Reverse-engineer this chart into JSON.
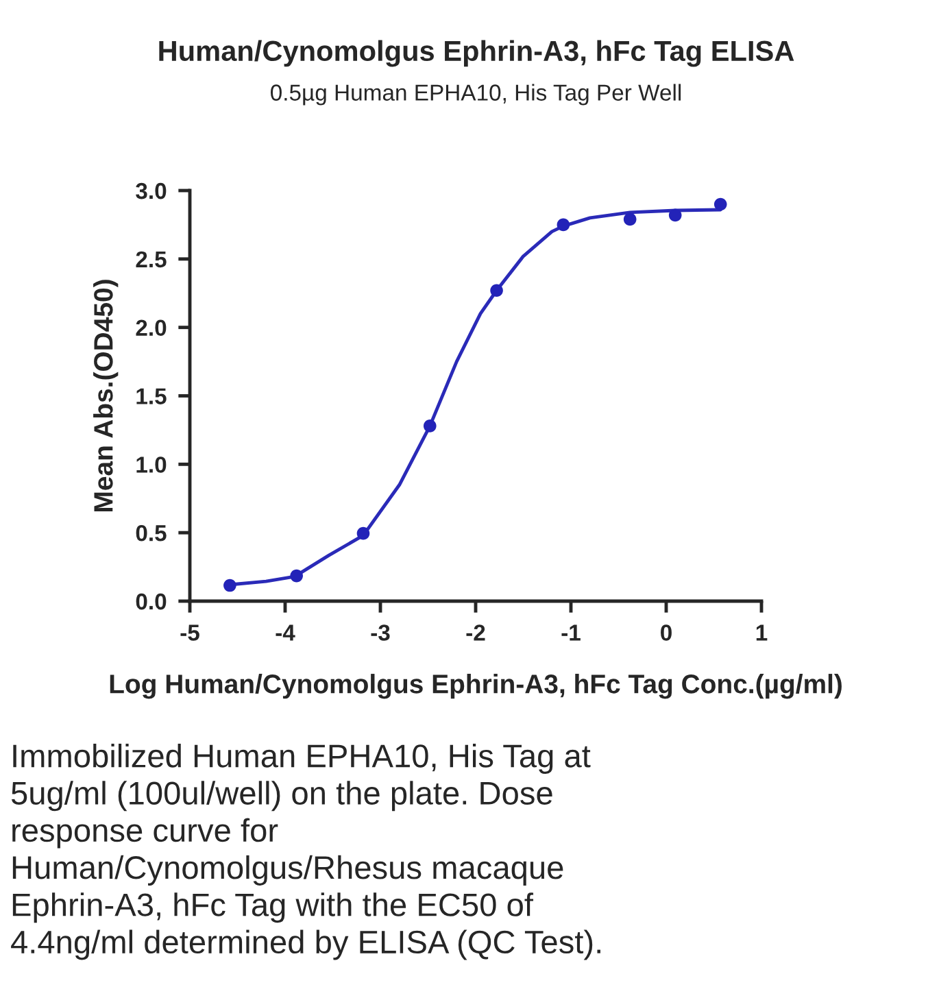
{
  "chart_data": {
    "type": "scatter",
    "title": "Human/Cynomolgus Ephrin-A3, hFc Tag ELISA",
    "subtitle": "0.5µg Human EPHA10, His Tag Per Well",
    "xlabel": "Log Human/Cynomolgus Ephrin-A3, hFc Tag Conc.(µg/ml)",
    "ylabel": "Mean Abs.(OD450)",
    "xlim": [
      -5,
      1
    ],
    "xticks": [
      -5,
      -4,
      -3,
      -2,
      -1,
      0,
      1
    ],
    "ylim": [
      0,
      3
    ],
    "yticks": [
      {
        "value": 0,
        "label": "0.0"
      },
      {
        "value": 0.5,
        "label": "0.5"
      },
      {
        "value": 1,
        "label": "1.0"
      },
      {
        "value": 1.5,
        "label": "1.5"
      },
      {
        "value": 2,
        "label": "2.0"
      },
      {
        "value": 2.5,
        "label": "2.5"
      },
      {
        "value": 3,
        "label": "3.0"
      }
    ],
    "grid": false,
    "legend": false,
    "series": [
      {
        "marker": "circle",
        "color": "#2323b8",
        "x": [
          -4.58,
          -3.88,
          -3.18,
          -2.48,
          -1.78,
          -1.08,
          -0.38,
          0.095,
          0.57
        ],
        "values": [
          0.115,
          0.185,
          0.495,
          1.28,
          2.27,
          2.75,
          2.79,
          2.82,
          2.9
        ]
      },
      {
        "type": "line",
        "marker": "none",
        "color": "#2a2ab8",
        "line_style": "solid",
        "x": [
          -4.58,
          -4.2,
          -3.9,
          -3.54,
          -3.18,
          -2.8,
          -2.48,
          -2.2,
          -1.95,
          -1.78,
          -1.5,
          -1.2,
          -1.08,
          -0.8,
          -0.38,
          0.1,
          0.57
        ],
        "values": [
          0.12,
          0.145,
          0.18,
          0.335,
          0.48,
          0.85,
          1.28,
          1.75,
          2.1,
          2.27,
          2.52,
          2.7,
          2.74,
          2.8,
          2.84,
          2.855,
          2.86
        ]
      }
    ],
    "annotations": [
      "Immobilized Human EPHA10, His Tag at\n5ug/ml (100ul/well) on the plate. Dose\nresponse curve for\nHuman/Cynomolgus/Rhesus macaque\nEphrin-A3, hFc Tag with the EC50 of\n4.4ng/ml determined by ELISA (QC Test)."
    ]
  }
}
